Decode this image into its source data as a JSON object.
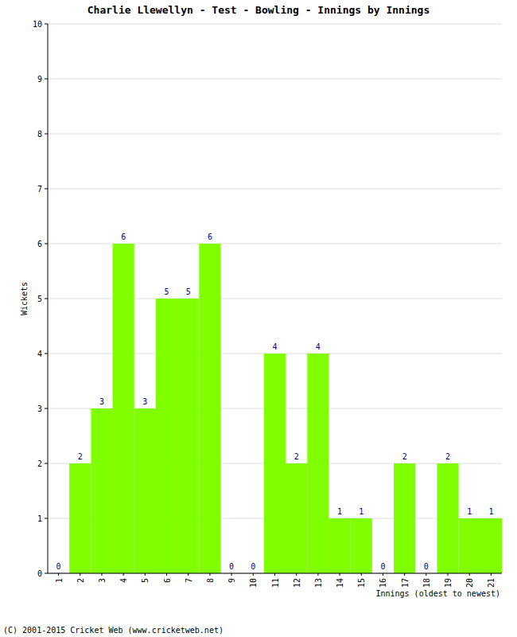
{
  "chart_data": {
    "type": "bar",
    "title": "Charlie Llewellyn - Test - Bowling - Innings by Innings",
    "x_label": "Innings (oldest to newest)",
    "y_label": "Wickets",
    "annotations": [
      "(C) 2001-2015 Cricket Web (www.cricketweb.net)"
    ],
    "categories": [
      "1",
      "2",
      "3",
      "4",
      "5",
      "6",
      "7",
      "8",
      "9",
      "10",
      "11",
      "12",
      "13",
      "14",
      "15",
      "16",
      "17",
      "18",
      "19",
      "20",
      "21"
    ],
    "values": [
      0,
      2,
      3,
      6,
      3,
      5,
      5,
      6,
      0,
      0,
      4,
      2,
      4,
      1,
      1,
      0,
      2,
      0,
      2,
      1,
      1
    ],
    "color": "#80ff00",
    "ylim": [
      0,
      10
    ],
    "yticks": [
      0,
      1,
      2,
      3,
      4,
      5,
      6,
      7,
      8,
      9,
      10
    ],
    "grid": true,
    "data_labels": true
  }
}
